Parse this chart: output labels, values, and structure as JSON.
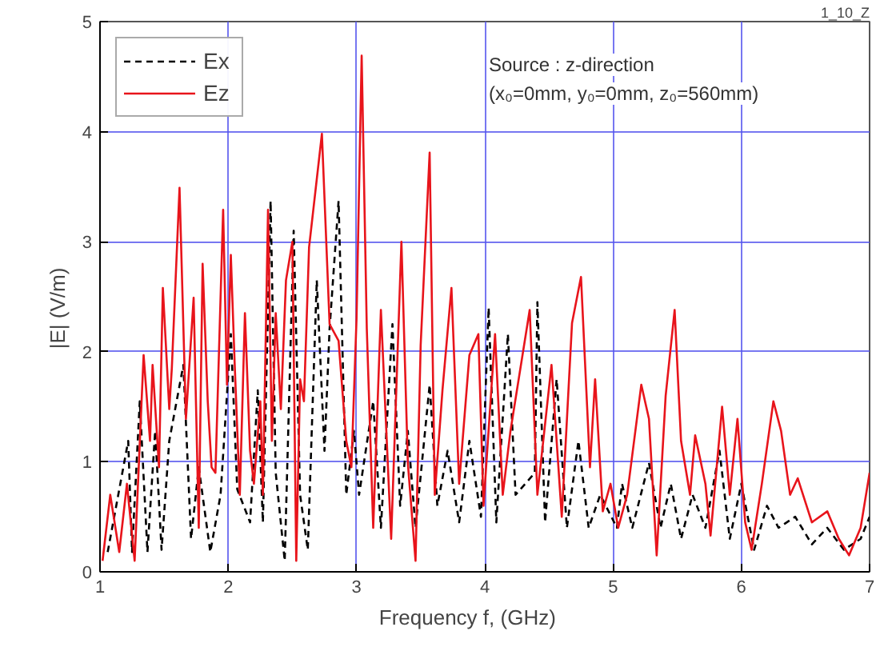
{
  "chart_data": {
    "type": "line",
    "xlabel": "Frequency   f,     (GHz)",
    "ylabel": "|E|     (V/m)",
    "annotations": [
      "1_10_Z",
      "Source : z-direction",
      "(x₀=0mm, y₀=0mm, z₀=560mm)"
    ],
    "xlim": [
      1,
      7
    ],
    "xticks": [
      1,
      2,
      3,
      4,
      5,
      6,
      7
    ],
    "ylim": [
      0,
      5
    ],
    "yticks": [
      0,
      1,
      2,
      3,
      4,
      5
    ],
    "grid": true,
    "legend": "top left",
    "series": [
      {
        "name": "Ex",
        "color": "#000000",
        "line_style": "dashed",
        "x": [
          1.06,
          1.22,
          1.25,
          1.31,
          1.37,
          1.43,
          1.48,
          1.54,
          1.65,
          1.71,
          1.77,
          1.86,
          1.94,
          2.02,
          2.07,
          2.17,
          2.23,
          2.27,
          2.33,
          2.37,
          2.44,
          2.51,
          2.56,
          2.62,
          2.69,
          2.75,
          2.79,
          2.86,
          2.92,
          2.98,
          3.02,
          3.13,
          3.19,
          3.28,
          3.34,
          3.4,
          3.46,
          3.57,
          3.63,
          3.71,
          3.8,
          3.88,
          3.97,
          4.03,
          4.09,
          4.18,
          4.24,
          4.39,
          4.41,
          4.47,
          4.56,
          4.64,
          4.73,
          4.81,
          4.9,
          5.03,
          5.07,
          5.15,
          5.28,
          5.37,
          5.45,
          5.53,
          5.62,
          5.72,
          5.83,
          5.91,
          6.0,
          6.1,
          6.2,
          6.29,
          6.42,
          6.55,
          6.67,
          6.8,
          6.93,
          7.0
        ],
        "values": [
          0.18,
          1.19,
          0.18,
          1.55,
          0.18,
          1.28,
          0.2,
          1.19,
          1.88,
          0.3,
          0.95,
          0.18,
          0.7,
          2.16,
          0.75,
          0.45,
          1.65,
          0.45,
          3.37,
          0.9,
          0.1,
          3.1,
          0.7,
          0.2,
          2.65,
          1.1,
          2.21,
          3.37,
          0.7,
          1.28,
          0.7,
          1.55,
          0.4,
          2.25,
          0.6,
          1.28,
          0.4,
          1.7,
          0.6,
          1.1,
          0.45,
          1.19,
          0.5,
          2.4,
          0.45,
          2.16,
          0.7,
          0.9,
          2.45,
          0.45,
          1.75,
          0.4,
          1.19,
          0.4,
          0.7,
          0.4,
          0.8,
          0.4,
          0.99,
          0.4,
          0.8,
          0.3,
          0.7,
          0.4,
          1.1,
          0.3,
          0.8,
          0.2,
          0.6,
          0.4,
          0.5,
          0.25,
          0.4,
          0.2,
          0.3,
          0.5
        ]
      },
      {
        "name": "Ez",
        "color": "#e8141b",
        "line_style": "solid",
        "x": [
          1.02,
          1.08,
          1.15,
          1.21,
          1.27,
          1.34,
          1.39,
          1.41,
          1.46,
          1.49,
          1.54,
          1.56,
          1.62,
          1.67,
          1.73,
          1.77,
          1.8,
          1.84,
          1.87,
          1.9,
          1.96,
          1.99,
          2.02,
          2.05,
          2.09,
          2.13,
          2.17,
          2.2,
          2.25,
          2.27,
          2.31,
          2.34,
          2.37,
          2.41,
          2.45,
          2.5,
          2.53,
          2.56,
          2.59,
          2.63,
          2.73,
          2.79,
          2.86,
          2.92,
          2.96,
          3.0,
          3.04,
          3.08,
          3.13,
          3.19,
          3.27,
          3.35,
          3.4,
          3.46,
          3.5,
          3.57,
          3.61,
          3.67,
          3.74,
          3.8,
          3.88,
          3.95,
          3.99,
          4.08,
          4.14,
          4.2,
          4.35,
          4.41,
          4.52,
          4.6,
          4.68,
          4.75,
          4.82,
          4.86,
          4.92,
          4.98,
          5.04,
          5.11,
          5.22,
          5.28,
          5.34,
          5.41,
          5.48,
          5.53,
          5.6,
          5.64,
          5.72,
          5.76,
          5.85,
          5.91,
          5.97,
          6.03,
          6.08,
          6.16,
          6.25,
          6.31,
          6.38,
          6.44,
          6.55,
          6.67,
          6.76,
          6.84,
          6.93,
          7.0
        ],
        "values": [
          0.1,
          0.7,
          0.18,
          0.8,
          0.1,
          1.97,
          1.19,
          1.88,
          0.95,
          2.58,
          1.48,
          1.85,
          3.49,
          1.39,
          2.49,
          0.4,
          2.8,
          1.55,
          0.95,
          0.9,
          3.29,
          1.7,
          2.88,
          1.89,
          0.7,
          2.35,
          1.1,
          0.8,
          1.55,
          0.7,
          3.29,
          1.19,
          2.35,
          1.48,
          2.65,
          3.0,
          0.1,
          1.75,
          1.55,
          2.95,
          3.98,
          2.25,
          2.1,
          1.19,
          0.95,
          2.3,
          4.69,
          2.21,
          0.4,
          2.38,
          0.3,
          3.0,
          0.99,
          0.1,
          2.06,
          3.81,
          0.7,
          1.65,
          2.58,
          0.8,
          1.97,
          2.16,
          0.6,
          2.16,
          0.7,
          1.28,
          2.38,
          0.7,
          1.88,
          0.5,
          2.26,
          2.68,
          0.95,
          1.75,
          0.55,
          0.8,
          0.4,
          0.7,
          1.7,
          1.39,
          0.15,
          1.6,
          2.38,
          1.19,
          0.7,
          1.24,
          0.8,
          0.33,
          1.5,
          0.7,
          1.39,
          0.45,
          0.2,
          0.8,
          1.55,
          1.28,
          0.7,
          0.85,
          0.45,
          0.55,
          0.3,
          0.15,
          0.4,
          0.9
        ]
      }
    ]
  }
}
